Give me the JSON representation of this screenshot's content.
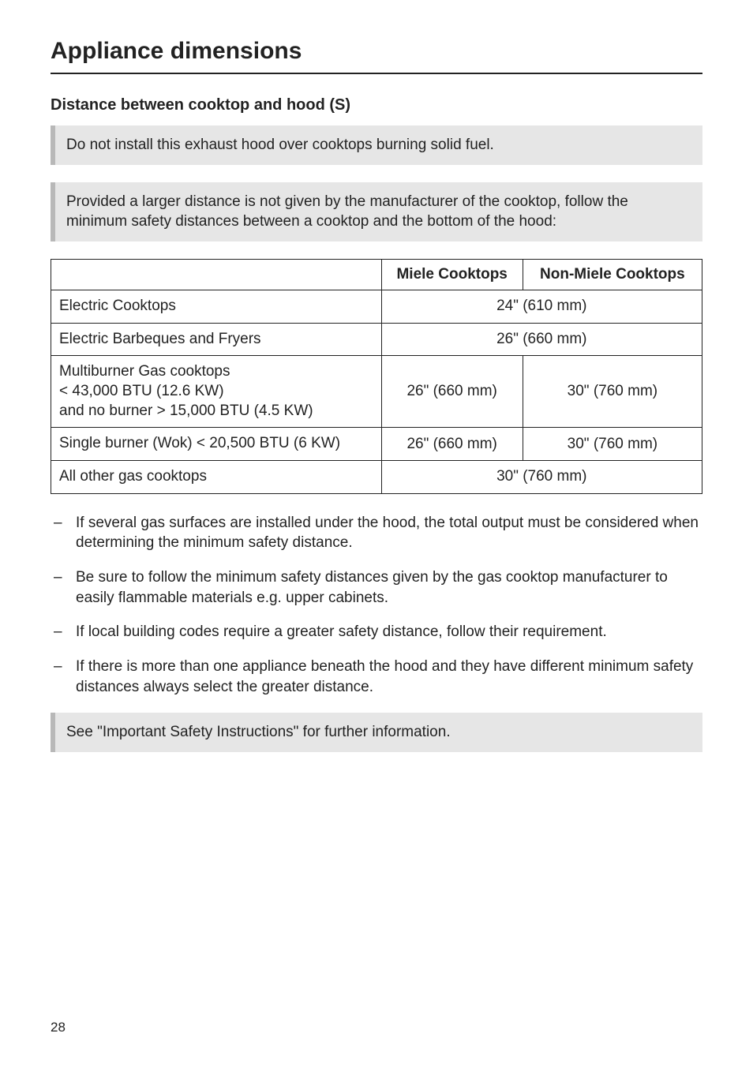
{
  "page": {
    "title": "Appliance dimensions",
    "subheading": "Distance between cooktop and hood (S)",
    "pageNumber": "28"
  },
  "callouts": {
    "warn1": "Do not install this exhaust hood over cooktops burning solid fuel.",
    "warn2": "Provided a larger distance is not given by the manufacturer of the cooktop, follow the minimum safety distances between a cooktop and the bottom of the hood:",
    "seeRef": "See \"Important Safety Instructions\" for further information."
  },
  "table": {
    "headers": {
      "col1": "Miele Cooktops",
      "col2": "Non-Miele Cooktops"
    },
    "rows": [
      {
        "label": "Electric Cooktops",
        "span": true,
        "value": "24\" (610 mm)"
      },
      {
        "label": "Electric Barbeques and Fryers",
        "span": true,
        "value": "26\" (660 mm)"
      },
      {
        "label": "Multiburner Gas cooktops\n< 43,000 BTU (12.6 KW)\nand no burner > 15,000 BTU (4.5 KW)",
        "span": false,
        "c1": "26\" (660 mm)",
        "c2": "30\" (760 mm)"
      },
      {
        "label": "Single burner (Wok) < 20,500 BTU (6 KW)",
        "span": false,
        "c1": "26\" (660 mm)",
        "c2": "30\" (760 mm)"
      },
      {
        "label": "All other gas cooktops",
        "span": true,
        "value": "30\" (760 mm)"
      }
    ]
  },
  "notes": [
    "If several gas surfaces are installed under the hood, the total output must be considered when determining the minimum safety distance.",
    "Be sure to follow the minimum safety distances given by the gas cooktop manufacturer to easily flammable materials e.g. upper cabinets.",
    "If local building codes require a greater safety distance, follow their requirement.",
    "If there is more than one appliance beneath the hood and they have different minimum safety distances always select the greater distance."
  ],
  "style": {
    "background": "#ffffff",
    "text_color": "#222222",
    "callout_bg": "#e6e6e6",
    "callout_border": "#b8b8b8",
    "title_fontsize": 30,
    "body_fontsize": 19
  }
}
